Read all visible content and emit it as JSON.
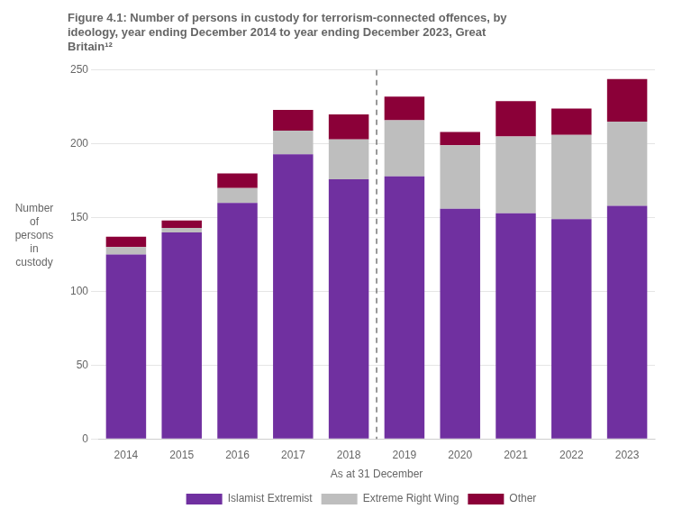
{
  "chart_data": {
    "type": "bar",
    "stacked": true,
    "title": "Figure 4.1: Number of persons in custody for terrorism-connected offences, by\nideology, year ending December 2014 to year ending December 2023, Great\nBritain¹²",
    "xlabel": "As at 31 December",
    "ylabel": "Number\nof\npersons\nin\ncustody",
    "categories": [
      "2014",
      "2015",
      "2016",
      "2017",
      "2018",
      "2019",
      "2020",
      "2021",
      "2022",
      "2023"
    ],
    "series": [
      {
        "name": "Islamist Extremist",
        "color": "#7030A0",
        "values": [
          125,
          140,
          160,
          193,
          176,
          178,
          156,
          153,
          149,
          158
        ]
      },
      {
        "name": "Extreme Right Wing",
        "color": "#BEBEBE",
        "values": [
          5,
          3,
          10,
          16,
          27,
          38,
          43,
          52,
          57,
          57
        ]
      },
      {
        "name": "Other",
        "color": "#8B0038",
        "values": [
          7,
          5,
          10,
          14,
          17,
          16,
          9,
          24,
          18,
          29
        ]
      }
    ],
    "ylim": [
      0,
      250
    ],
    "yticks": [
      0,
      50,
      100,
      150,
      200,
      250
    ],
    "grid": true,
    "legend": "bottom",
    "vline": {
      "between": [
        "2018",
        "2019"
      ],
      "line_style": "dashed",
      "color": "#555555"
    }
  }
}
